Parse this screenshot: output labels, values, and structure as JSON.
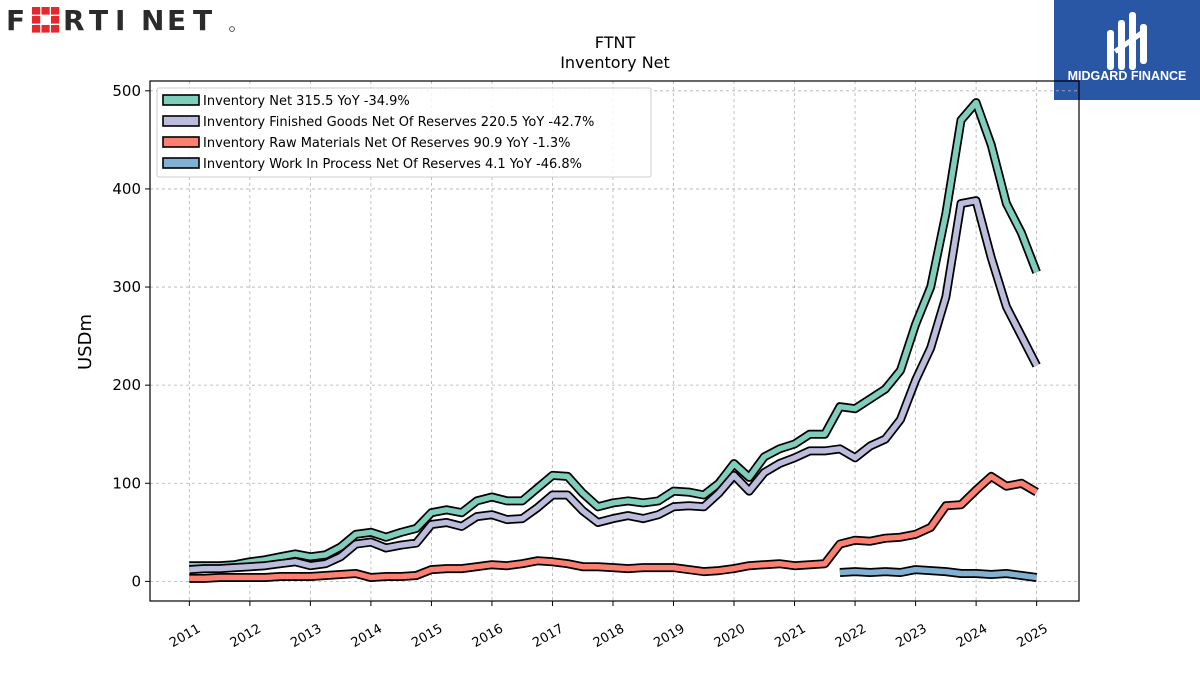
{
  "brand": {
    "company_logo_text": "FORTINET",
    "badge_text": "MIDGARD FINANCE",
    "colors": {
      "fortinet_red": "#e8272c",
      "fortinet_dark": "#2b2b2b",
      "badge_blue": "#2a56a6"
    }
  },
  "chart_data": {
    "type": "line",
    "title": "FTNT",
    "subtitle": "Inventory Net",
    "xlabel": "",
    "ylabel": "USDm",
    "ylim": [
      -20,
      510
    ],
    "xlim": [
      2010.35,
      2025.7
    ],
    "yticks": [
      0,
      100,
      200,
      300,
      400,
      500
    ],
    "xticks": [
      "2011",
      "2012",
      "2013",
      "2014",
      "2015",
      "2016",
      "2017",
      "2018",
      "2019",
      "2020",
      "2021",
      "2022",
      "2023",
      "2024",
      "2025"
    ],
    "grid": true,
    "legend_position": "top-left",
    "series": [
      {
        "name": "Inventory Net  315.5 YoY -34.9%",
        "color": "#7fcdbb",
        "x": [
          2011.0,
          2011.25,
          2011.5,
          2011.75,
          2012.0,
          2012.25,
          2012.5,
          2012.75,
          2013.0,
          2013.25,
          2013.5,
          2013.75,
          2014.0,
          2014.25,
          2014.5,
          2014.75,
          2015.0,
          2015.25,
          2015.5,
          2015.75,
          2016.0,
          2016.25,
          2016.5,
          2016.75,
          2017.0,
          2017.25,
          2017.5,
          2017.75,
          2018.0,
          2018.25,
          2018.5,
          2018.75,
          2019.0,
          2019.25,
          2019.5,
          2019.75,
          2020.0,
          2020.25,
          2020.5,
          2020.75,
          2021.0,
          2021.25,
          2021.5,
          2021.75,
          2022.0,
          2022.25,
          2022.5,
          2022.75,
          2023.0,
          2023.25,
          2023.5,
          2023.75,
          2024.0,
          2024.25,
          2024.5,
          2024.75,
          2025.0
        ],
        "values": [
          16,
          16,
          16,
          17,
          20,
          22,
          25,
          28,
          25,
          27,
          35,
          48,
          50,
          45,
          50,
          54,
          70,
          73,
          70,
          82,
          86,
          82,
          82,
          95,
          108,
          107,
          90,
          76,
          80,
          82,
          80,
          82,
          92,
          91,
          88,
          100,
          120,
          106,
          127,
          135,
          140,
          150,
          150,
          178,
          176,
          186,
          196,
          215,
          262,
          300,
          375,
          470,
          488,
          445,
          385,
          355,
          315
        ]
      },
      {
        "name": "Inventory Finished Goods Net Of Reserves  220.5 YoY -42.7%",
        "color": "#bcbddc",
        "x": [
          2011.0,
          2011.25,
          2011.5,
          2011.75,
          2012.0,
          2012.25,
          2012.5,
          2012.75,
          2013.0,
          2013.25,
          2013.5,
          2013.75,
          2014.0,
          2014.25,
          2014.5,
          2014.75,
          2015.0,
          2015.25,
          2015.5,
          2015.75,
          2016.0,
          2016.25,
          2016.5,
          2016.75,
          2017.0,
          2017.25,
          2017.5,
          2017.75,
          2018.0,
          2018.25,
          2018.5,
          2018.75,
          2019.0,
          2019.25,
          2019.5,
          2019.75,
          2020.0,
          2020.25,
          2020.5,
          2020.75,
          2021.0,
          2021.25,
          2021.5,
          2021.75,
          2022.0,
          2022.25,
          2022.5,
          2022.75,
          2023.0,
          2023.25,
          2023.5,
          2023.75,
          2024.0,
          2024.25,
          2024.5,
          2024.75,
          2025.0
        ],
        "values": [
          12,
          13,
          13,
          14,
          15,
          16,
          18,
          20,
          16,
          18,
          25,
          38,
          40,
          34,
          37,
          39,
          58,
          60,
          56,
          66,
          68,
          63,
          64,
          75,
          88,
          88,
          72,
          60,
          64,
          67,
          64,
          68,
          76,
          77,
          76,
          90,
          108,
          92,
          111,
          120,
          126,
          133,
          133,
          135,
          126,
          138,
          145,
          165,
          205,
          238,
          290,
          385,
          388,
          330,
          280,
          250,
          220
        ]
      },
      {
        "name": "Inventory Raw Materials Net Of Reserves  90.9 YoY -1.3%",
        "color": "#fb8072",
        "x": [
          2011.0,
          2011.25,
          2011.5,
          2011.75,
          2012.0,
          2012.25,
          2012.5,
          2012.75,
          2013.0,
          2013.25,
          2013.5,
          2013.75,
          2014.0,
          2014.25,
          2014.5,
          2014.75,
          2015.0,
          2015.25,
          2015.5,
          2015.75,
          2016.0,
          2016.25,
          2016.5,
          2016.75,
          2017.0,
          2017.25,
          2017.5,
          2017.75,
          2018.0,
          2018.25,
          2018.5,
          2018.75,
          2019.0,
          2019.25,
          2019.5,
          2019.75,
          2020.0,
          2020.25,
          2020.5,
          2020.75,
          2021.0,
          2021.25,
          2021.5,
          2021.75,
          2022.0,
          2022.25,
          2022.5,
          2022.75,
          2023.0,
          2023.25,
          2023.5,
          2023.75,
          2024.0,
          2024.25,
          2024.5,
          2024.75,
          2025.0
        ],
        "values": [
          3,
          3,
          4,
          4,
          4,
          4,
          5,
          5,
          5,
          6,
          7,
          8,
          4,
          5,
          5,
          6,
          12,
          13,
          13,
          15,
          17,
          16,
          18,
          21,
          20,
          18,
          15,
          15,
          14,
          13,
          14,
          14,
          14,
          12,
          10,
          11,
          13,
          16,
          17,
          18,
          16,
          17,
          18,
          38,
          42,
          41,
          44,
          45,
          48,
          55,
          77,
          78,
          93,
          107,
          97,
          100,
          91
        ]
      },
      {
        "name": "Inventory Work In Process Net Of Reserves  4.1 YoY -46.8%",
        "color": "#80b1d3",
        "x": [
          2021.75,
          2022.0,
          2022.25,
          2022.5,
          2022.75,
          2023.0,
          2023.25,
          2023.5,
          2023.75,
          2024.0,
          2024.25,
          2024.5,
          2024.75,
          2025.0
        ],
        "values": [
          9,
          10,
          9,
          10,
          9,
          12,
          11,
          10,
          8,
          8,
          7,
          8,
          6,
          4
        ]
      }
    ]
  }
}
